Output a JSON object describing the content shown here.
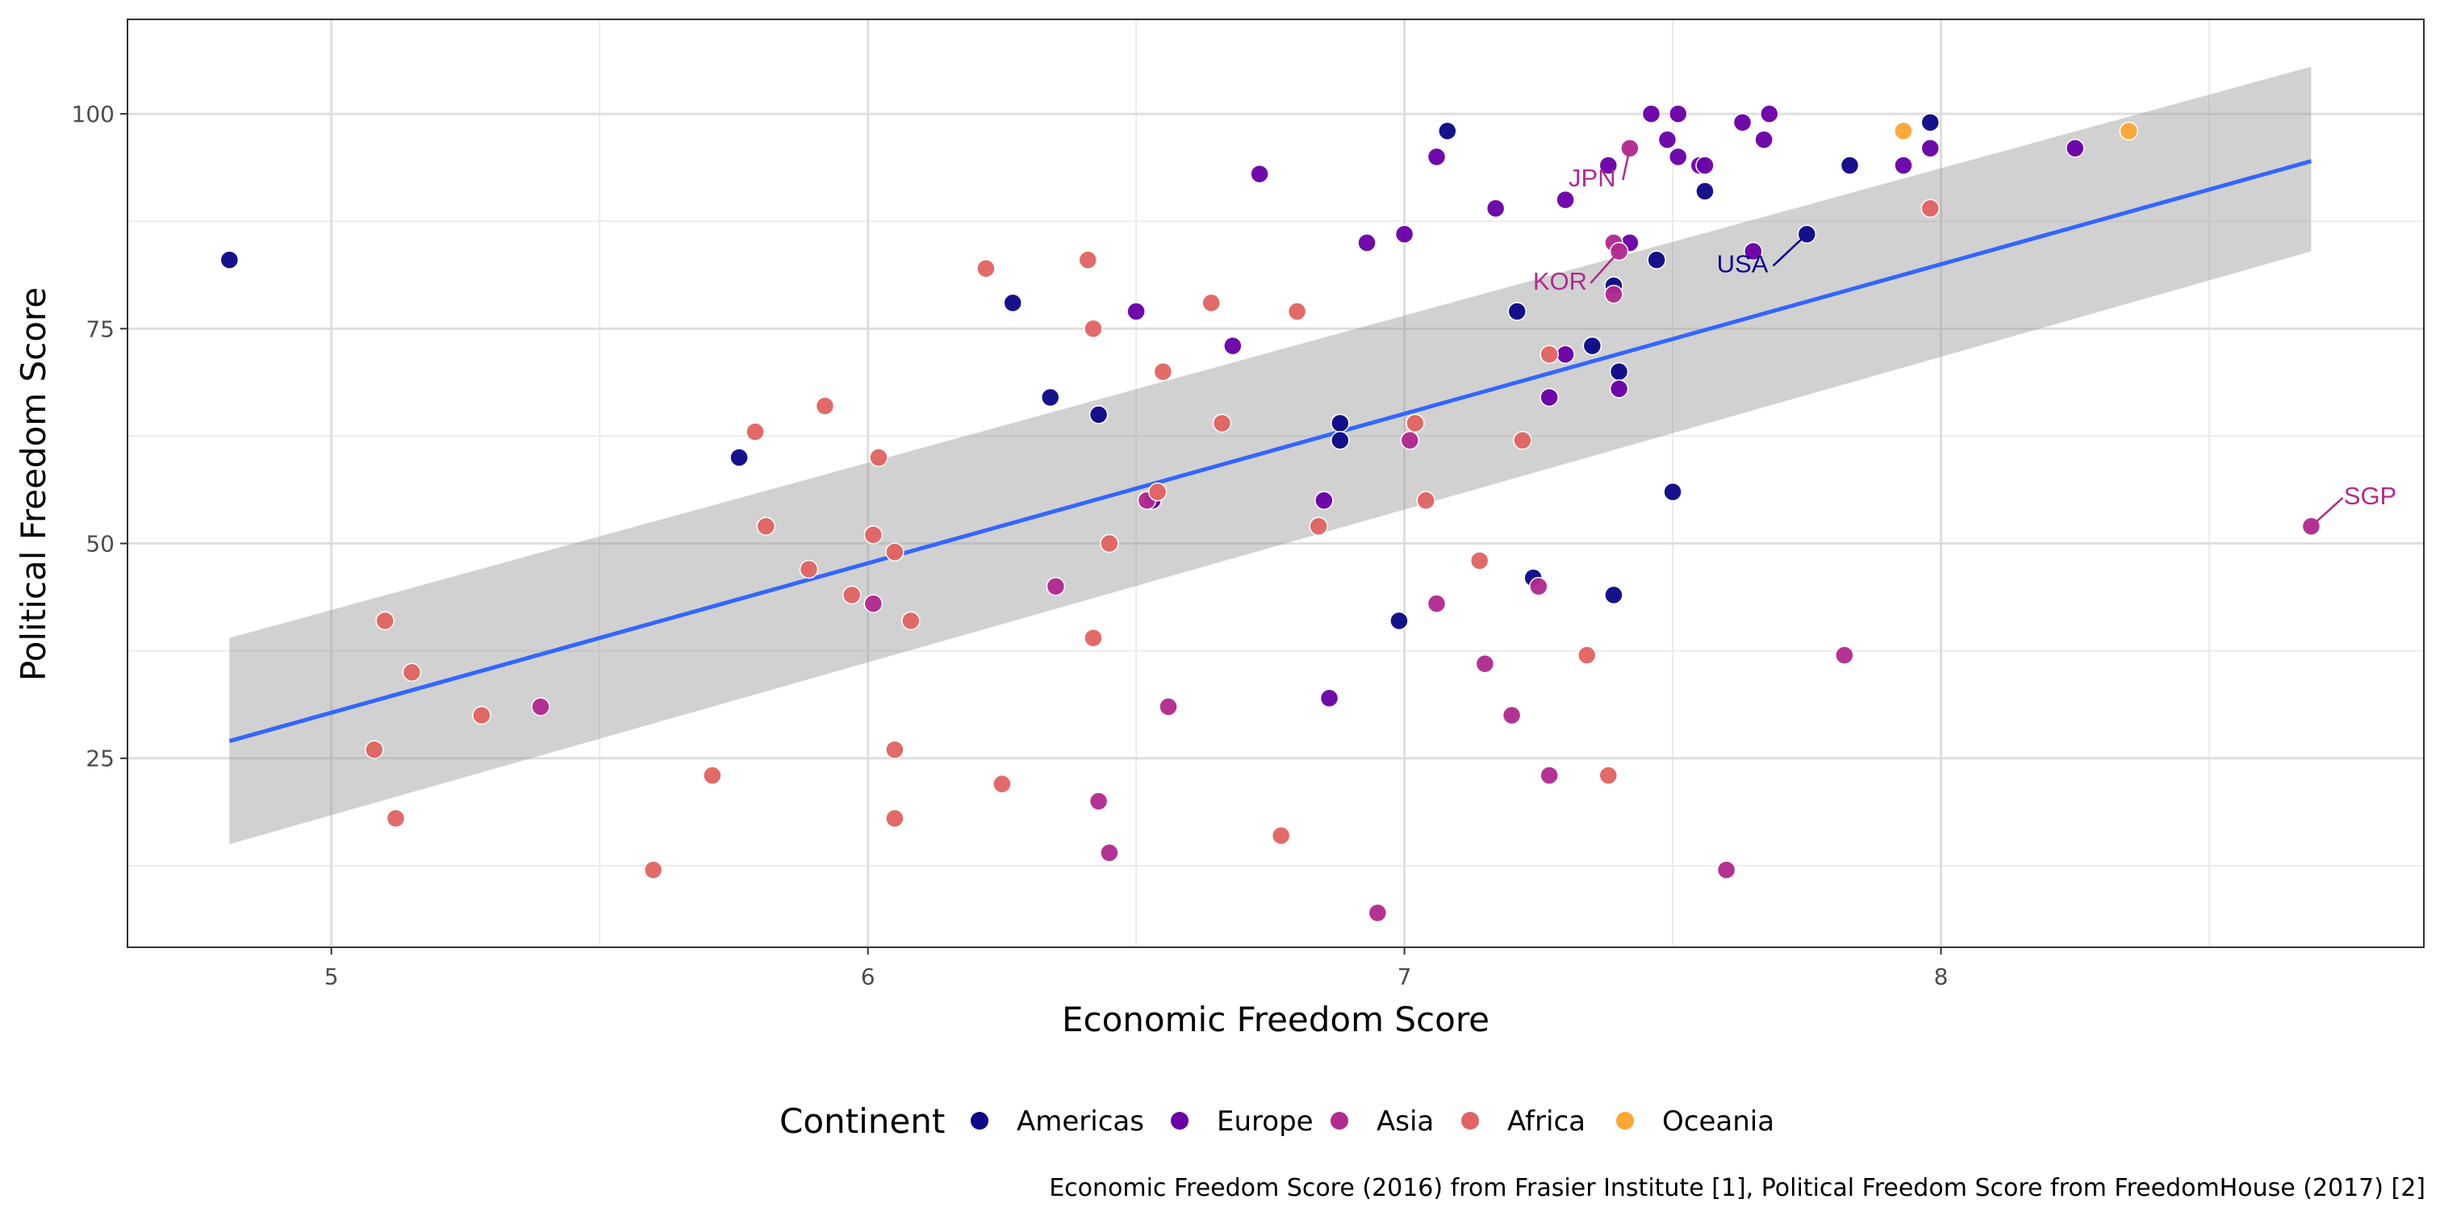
{
  "chart_data": {
    "type": "scatter",
    "xlabel": "Economic Freedom Score",
    "ylabel": "Political Freedom Score",
    "xlim": [
      4.62,
      8.9
    ],
    "ylim": [
      3,
      111
    ],
    "x_ticks": [
      5,
      6,
      7,
      8
    ],
    "y_ticks": [
      25,
      50,
      75,
      100
    ],
    "grid": true,
    "legend": {
      "title": "Continent",
      "position": "bottom",
      "entries": [
        {
          "name": "Americas",
          "color": "#0d0887"
        },
        {
          "name": "Europe",
          "color": "#6a00a8"
        },
        {
          "name": "Asia",
          "color": "#b12a90"
        },
        {
          "name": "Africa",
          "color": "#e16462"
        },
        {
          "name": "Oceania",
          "color": "#fca636"
        }
      ]
    },
    "caption": "Economic Freedom Score (2016) from Frasier Institute [1], Political Freedom Score from FreedomHouse (2017) [2]",
    "trend": {
      "method": "linear",
      "color": "#3366ff",
      "x": [
        4.81,
        8.69
      ],
      "y": [
        27,
        94.5
      ],
      "ci_lower": [
        15,
        84
      ],
      "ci_upper": [
        39,
        105.5
      ],
      "band_color": "#999999"
    },
    "annotations": [
      {
        "text": "JPN",
        "x": 7.42,
        "y": 96,
        "label_x": 7.35,
        "label_y": 92.5,
        "color": "#b12a90"
      },
      {
        "text": "KOR",
        "x": 7.4,
        "y": 84,
        "label_x": 7.29,
        "label_y": 80.5,
        "color": "#b12a90"
      },
      {
        "text": "USA",
        "x": 7.75,
        "y": 86,
        "label_x": 7.63,
        "label_y": 82.5,
        "color": "#0d0887"
      },
      {
        "text": "SGP",
        "x": 8.69,
        "y": 52,
        "label_x": 8.8,
        "label_y": 55.5,
        "color": "#b12a90"
      }
    ],
    "series": [
      {
        "name": "Americas",
        "color": "#0d0887",
        "points": [
          [
            4.81,
            83
          ],
          [
            5.76,
            60
          ],
          [
            6.27,
            78
          ],
          [
            6.34,
            67
          ],
          [
            6.43,
            65
          ],
          [
            6.88,
            64
          ],
          [
            6.88,
            62
          ],
          [
            6.99,
            41
          ],
          [
            7.08,
            98
          ],
          [
            7.21,
            77
          ],
          [
            7.24,
            46
          ],
          [
            7.35,
            73
          ],
          [
            7.39,
            80
          ],
          [
            7.39,
            44
          ],
          [
            7.4,
            70
          ],
          [
            7.47,
            83
          ],
          [
            7.5,
            56
          ],
          [
            7.56,
            91
          ],
          [
            7.75,
            86
          ],
          [
            7.83,
            94
          ],
          [
            7.98,
            99
          ]
        ]
      },
      {
        "name": "Europe",
        "color": "#6a00a8",
        "points": [
          [
            6.5,
            77
          ],
          [
            6.53,
            55
          ],
          [
            6.68,
            73
          ],
          [
            6.73,
            93
          ],
          [
            6.85,
            55
          ],
          [
            6.86,
            32
          ],
          [
            6.93,
            85
          ],
          [
            7.0,
            86
          ],
          [
            7.06,
            95
          ],
          [
            7.17,
            89
          ],
          [
            7.27,
            67
          ],
          [
            7.3,
            72
          ],
          [
            7.3,
            90
          ],
          [
            7.38,
            94
          ],
          [
            7.4,
            68
          ],
          [
            7.42,
            85
          ],
          [
            7.46,
            100
          ],
          [
            7.49,
            97
          ],
          [
            7.51,
            100
          ],
          [
            7.51,
            95
          ],
          [
            7.55,
            94
          ],
          [
            7.56,
            94
          ],
          [
            7.63,
            99
          ],
          [
            7.65,
            84
          ],
          [
            7.67,
            97
          ],
          [
            7.68,
            100
          ],
          [
            7.93,
            94
          ],
          [
            7.98,
            96
          ],
          [
            8.25,
            96
          ]
        ]
      },
      {
        "name": "Asia",
        "color": "#b12a90",
        "points": [
          [
            5.39,
            31
          ],
          [
            6.01,
            43
          ],
          [
            6.35,
            45
          ],
          [
            6.43,
            20
          ],
          [
            6.45,
            14
          ],
          [
            6.52,
            55
          ],
          [
            6.56,
            31
          ],
          [
            6.95,
            7
          ],
          [
            7.01,
            62
          ],
          [
            7.06,
            43
          ],
          [
            7.15,
            36
          ],
          [
            7.2,
            30
          ],
          [
            7.25,
            45
          ],
          [
            7.27,
            23
          ],
          [
            7.39,
            85
          ],
          [
            7.39,
            79
          ],
          [
            7.4,
            84
          ],
          [
            7.42,
            96
          ],
          [
            7.6,
            12
          ],
          [
            7.82,
            37
          ],
          [
            8.69,
            52
          ]
        ]
      },
      {
        "name": "Africa",
        "color": "#e16462",
        "points": [
          [
            5.08,
            26
          ],
          [
            5.1,
            41
          ],
          [
            5.12,
            18
          ],
          [
            5.15,
            35
          ],
          [
            5.28,
            30
          ],
          [
            5.6,
            12
          ],
          [
            5.71,
            23
          ],
          [
            5.79,
            63
          ],
          [
            5.81,
            52
          ],
          [
            5.89,
            47
          ],
          [
            5.92,
            66
          ],
          [
            5.97,
            44
          ],
          [
            6.01,
            51
          ],
          [
            6.02,
            60
          ],
          [
            6.05,
            49
          ],
          [
            6.05,
            26
          ],
          [
            6.05,
            18
          ],
          [
            6.08,
            41
          ],
          [
            6.22,
            82
          ],
          [
            6.25,
            22
          ],
          [
            6.41,
            83
          ],
          [
            6.42,
            75
          ],
          [
            6.42,
            39
          ],
          [
            6.45,
            50
          ],
          [
            6.54,
            56
          ],
          [
            6.55,
            70
          ],
          [
            6.64,
            78
          ],
          [
            6.66,
            64
          ],
          [
            6.77,
            16
          ],
          [
            6.8,
            77
          ],
          [
            6.84,
            52
          ],
          [
            7.02,
            64
          ],
          [
            7.04,
            55
          ],
          [
            7.14,
            48
          ],
          [
            7.22,
            62
          ],
          [
            7.27,
            72
          ],
          [
            7.34,
            37
          ],
          [
            7.38,
            23
          ],
          [
            7.98,
            89
          ]
        ]
      },
      {
        "name": "Oceania",
        "color": "#fca636",
        "points": [
          [
            7.93,
            98
          ],
          [
            8.35,
            98
          ]
        ]
      }
    ]
  }
}
